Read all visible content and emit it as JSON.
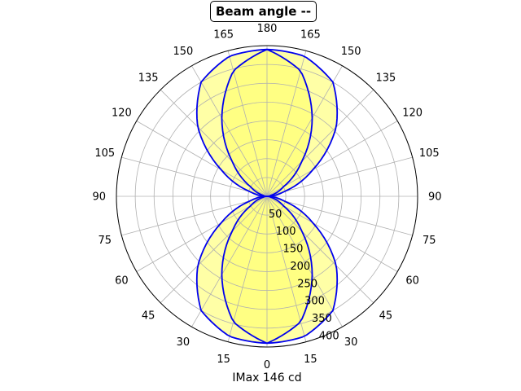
{
  "chart_data": {
    "type": "polar",
    "title": "Beam angle --",
    "xlabel": "IMax 146 cd",
    "angle_tick_labels": [
      "0",
      "15",
      "30",
      "45",
      "60",
      "75",
      "90",
      "105",
      "120",
      "135",
      "150",
      "165",
      "180",
      "165",
      "150",
      "135",
      "120",
      "105",
      "90",
      "75",
      "60",
      "45",
      "30",
      "15"
    ],
    "radial_ticks": [
      50,
      100,
      150,
      200,
      250,
      300,
      350,
      400
    ],
    "rlim": [
      0,
      400
    ],
    "grid": true,
    "fill_color": "#ffff80",
    "line_color": "#0000ee",
    "series": [
      {
        "angles_deg": [
          0,
          15,
          30,
          45,
          60,
          75,
          90
        ],
        "values": [
          390,
          385,
          350,
          260,
          140,
          45,
          0
        ]
      },
      {
        "angles_deg": [
          0,
          15,
          30,
          45,
          60,
          75,
          90
        ],
        "values": [
          390,
          345,
          240,
          130,
          50,
          12,
          0
        ]
      }
    ]
  }
}
